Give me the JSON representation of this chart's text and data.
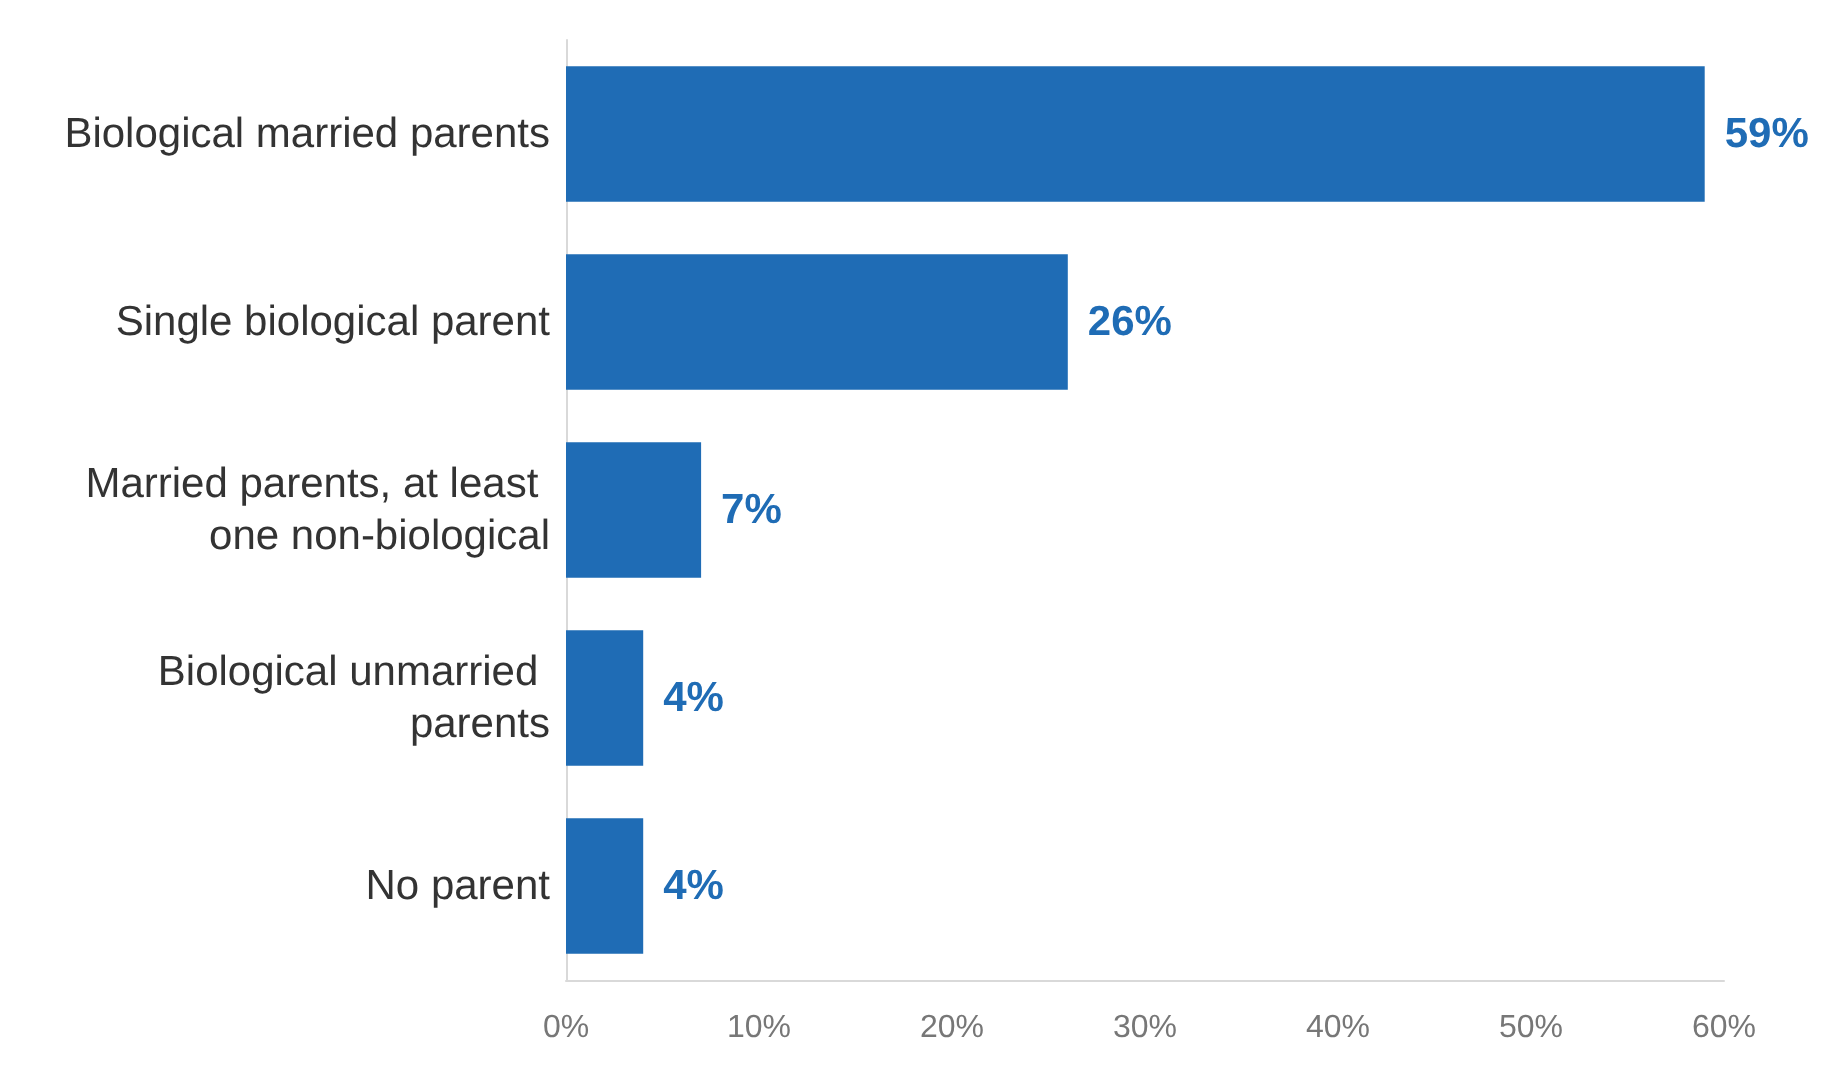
{
  "chart_data": {
    "type": "bar",
    "orientation": "horizontal",
    "categories": [
      "Biological married parents",
      "Single biological parent",
      "Married parents, at least one non-biological",
      "Biological unmarried parents",
      "No parent"
    ],
    "values": [
      59,
      26,
      7,
      4,
      4
    ],
    "value_labels": [
      "59%",
      "26%",
      "7%",
      "4%",
      "4%"
    ],
    "color": "#1f6cb5",
    "xlim": [
      0,
      60
    ],
    "xticks": [
      {
        "value": 0,
        "label": "0%"
      },
      {
        "value": 10,
        "label": "10%"
      },
      {
        "value": 20,
        "label": "20%"
      },
      {
        "value": 30,
        "label": "30%"
      },
      {
        "value": 40,
        "label": "40%"
      },
      {
        "value": 50,
        "label": "50%"
      },
      {
        "value": 60,
        "label": "60%"
      }
    ],
    "grid": false
  }
}
